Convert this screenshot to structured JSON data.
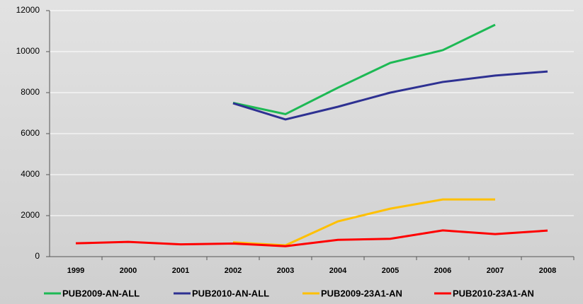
{
  "chart_data": {
    "type": "line",
    "categories": [
      "1999",
      "2000",
      "2001",
      "2002",
      "2003",
      "2004",
      "2005",
      "2006",
      "2007",
      "2008"
    ],
    "series": [
      {
        "name": "PUB2009-AN-ALL",
        "color": "#1db954",
        "values": [
          null,
          null,
          null,
          7500,
          6950,
          8240,
          9450,
          10070,
          11310,
          null
        ]
      },
      {
        "name": "PUB2010-AN-ALL",
        "color": "#2e3192",
        "values": [
          null,
          null,
          null,
          7480,
          6690,
          7310,
          8000,
          8520,
          8830,
          9030
        ]
      },
      {
        "name": "PUB2009-23A1-AN",
        "color": "#ffc000",
        "values": [
          null,
          null,
          null,
          700,
          550,
          1720,
          2340,
          2790,
          2790,
          null
        ]
      },
      {
        "name": "PUB2010-23A1-AN",
        "color": "#ff0000",
        "values": [
          650,
          720,
          600,
          640,
          510,
          820,
          870,
          1280,
          1100,
          1270
        ]
      }
    ],
    "ylim": [
      0,
      12000
    ],
    "yticks": [
      0,
      2000,
      4000,
      6000,
      8000,
      10000,
      12000
    ],
    "grid": true,
    "legend": "bottom"
  }
}
